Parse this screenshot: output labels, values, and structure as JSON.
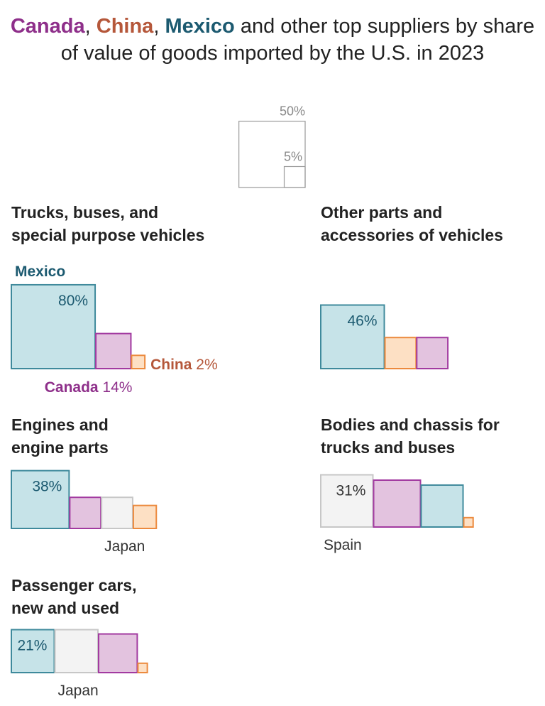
{
  "title": {
    "canada": "Canada",
    "sep1": ", ",
    "china": "China",
    "sep2": ", ",
    "mexico": "Mexico",
    "rest": " and other top suppliers by share of value of goods imported by the U.S. in 2023"
  },
  "legend": {
    "big_label": "50%",
    "small_label": "5%",
    "big_value": 50,
    "small_value": 5
  },
  "colors": {
    "Mexico": {
      "fill": "#c6e3e8",
      "stroke": "#3f8a9c",
      "text": "#1c5a70"
    },
    "Canada": {
      "fill": "#e3c3df",
      "stroke": "#a23aa0",
      "text": "#8e2f8a"
    },
    "China": {
      "fill": "#fde0c4",
      "stroke": "#ec8a3e",
      "text": "#b5573a"
    },
    "Japan": {
      "fill": "#f3f3f3",
      "stroke": "#c7c7c7",
      "text": "#333333"
    },
    "Spain": {
      "fill": "#f3f3f3",
      "stroke": "#c7c7c7",
      "text": "#333333"
    }
  },
  "chart_data": {
    "type": "area",
    "encoding": "square area proportional to import share",
    "panels": [
      {
        "title": [
          "Trucks, buses, and",
          "special purpose vehicles"
        ],
        "squares": [
          {
            "country": "Mexico",
            "value": 80,
            "label_inside": "80%",
            "country_label": "Mexico"
          },
          {
            "country": "Canada",
            "value": 14,
            "label_text": "Canada",
            "label_value": "14%"
          },
          {
            "country": "China",
            "value": 2,
            "label_text": "China",
            "label_value": "2%"
          }
        ]
      },
      {
        "title": [
          "Other parts and",
          "accessories of vehicles"
        ],
        "squares": [
          {
            "country": "Mexico",
            "value": 46,
            "label_inside": "46%"
          },
          {
            "country": "China",
            "value": 11
          },
          {
            "country": "Canada",
            "value": 11
          }
        ]
      },
      {
        "title": [
          "Engines and",
          "engine parts"
        ],
        "squares": [
          {
            "country": "Mexico",
            "value": 38,
            "label_inside": "38%"
          },
          {
            "country": "Canada",
            "value": 11
          },
          {
            "country": "Japan",
            "value": 11,
            "label_below": "Japan"
          },
          {
            "country": "China",
            "value": 6
          }
        ]
      },
      {
        "title": [
          "Bodies and chassis for",
          "trucks and buses"
        ],
        "squares": [
          {
            "country": "Spain",
            "value": 31,
            "label_inside": "31%",
            "label_below": "Spain"
          },
          {
            "country": "Canada",
            "value": 25
          },
          {
            "country": "Mexico",
            "value": 20
          },
          {
            "country": "China",
            "value": 1
          }
        ]
      },
      {
        "title": [
          "Passenger cars,",
          "new and used"
        ],
        "squares": [
          {
            "country": "Mexico",
            "value": 21,
            "label_inside": "21%"
          },
          {
            "country": "Japan",
            "value": 21,
            "label_below": "Japan"
          },
          {
            "country": "Canada",
            "value": 17
          },
          {
            "country": "China",
            "value": 1
          }
        ]
      }
    ]
  }
}
